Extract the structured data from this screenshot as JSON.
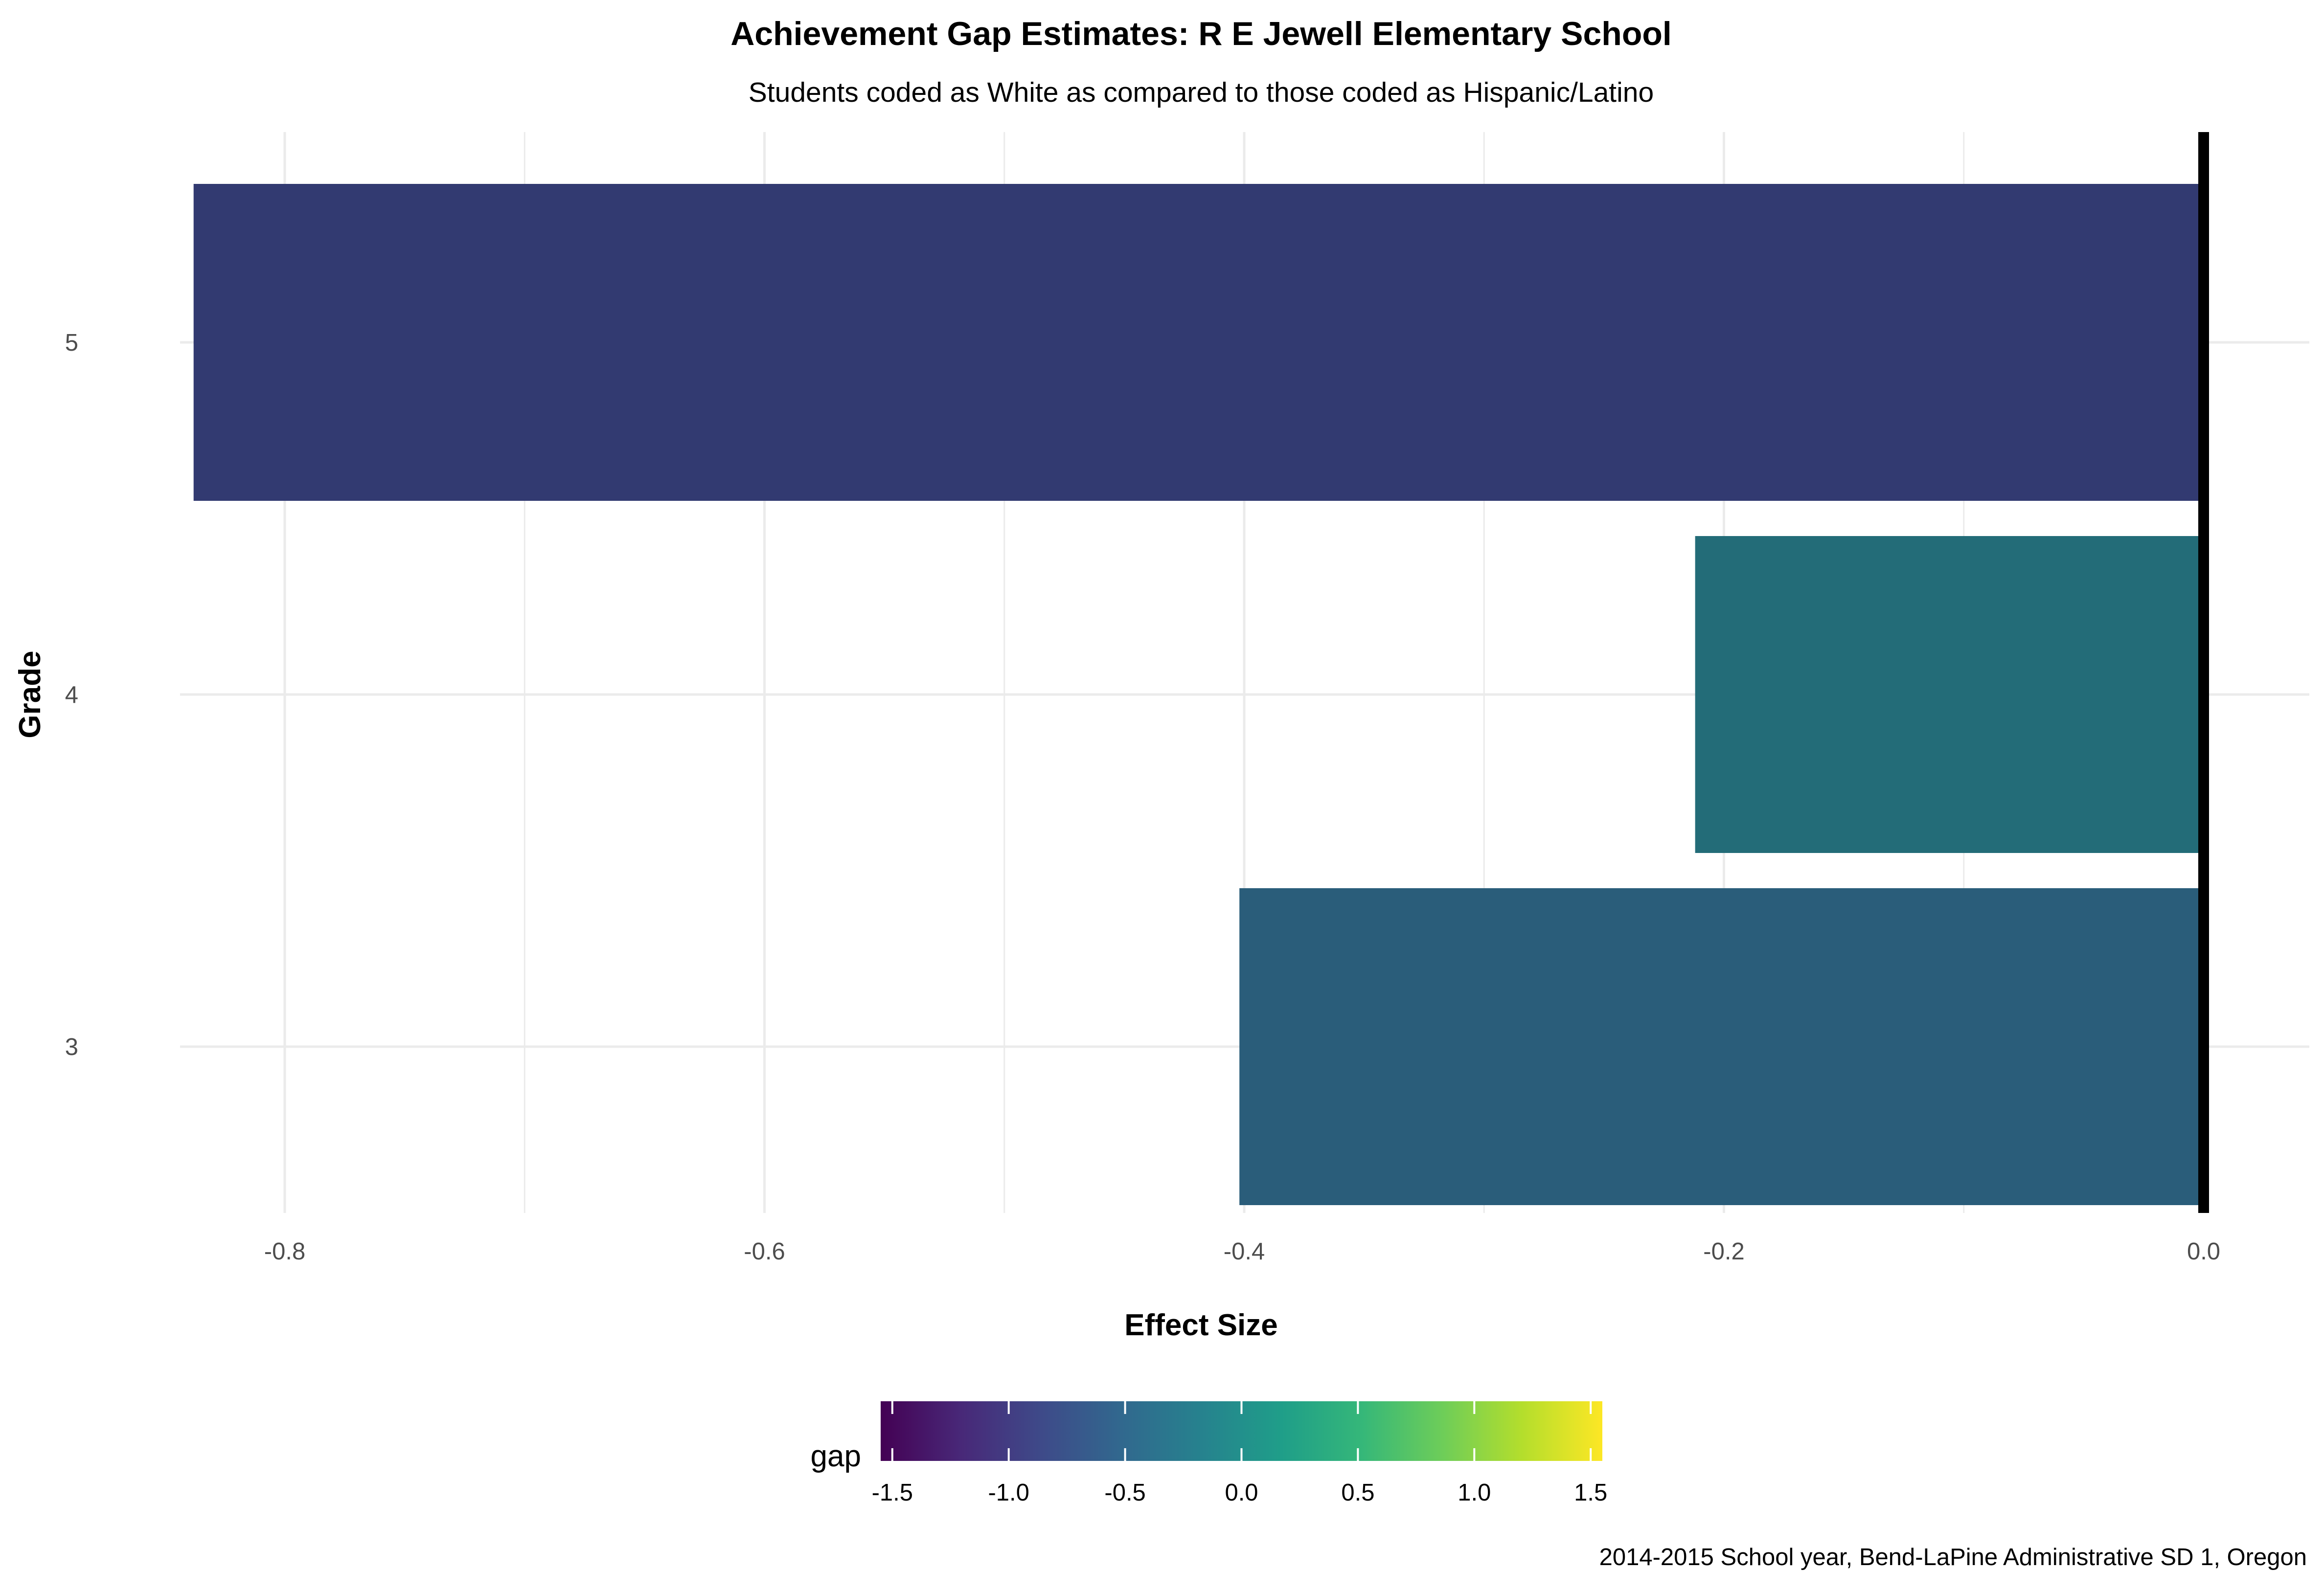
{
  "chart_data": {
    "type": "bar",
    "orientation": "horizontal",
    "title": "Achievement Gap Estimates: R E Jewell Elementary School",
    "subtitle": "Students coded as White as compared to those coded as Hispanic/Latino",
    "xlabel": "Effect Size",
    "ylabel": "Grade",
    "categories": [
      "3",
      "4",
      "5"
    ],
    "values": [
      -0.402,
      -0.212,
      -0.838
    ],
    "bar_colors": [
      "#2A5D7A",
      "#236C78",
      "#323A71"
    ],
    "xlim": [
      -0.87,
      0.0
    ],
    "x_ticks": [
      {
        "value": -0.8,
        "label": "-0.8"
      },
      {
        "value": -0.6,
        "label": "-0.6"
      },
      {
        "value": -0.4,
        "label": "-0.4"
      },
      {
        "value": -0.2,
        "label": "-0.2"
      },
      {
        "value": 0.0,
        "label": "0.0"
      }
    ],
    "reference_line": 0.0,
    "grid": true,
    "legend": {
      "title": "gap",
      "placement": "bottom",
      "range": [
        -1.55,
        1.55
      ],
      "ticks": [
        {
          "value": -1.5,
          "label": "-1.5"
        },
        {
          "value": -1.0,
          "label": "-1.0"
        },
        {
          "value": -0.5,
          "label": "-0.5"
        },
        {
          "value": 0.0,
          "label": "0.0"
        },
        {
          "value": 0.5,
          "label": "0.5"
        },
        {
          "value": 1.0,
          "label": "1.0"
        },
        {
          "value": 1.5,
          "label": "1.5"
        }
      ],
      "colors": [
        "#440154",
        "#482878",
        "#3E4A89",
        "#31688E",
        "#26828E",
        "#1F9E89",
        "#35B779",
        "#6DCD59",
        "#B4DE2C",
        "#FDE725"
      ]
    },
    "caption": "2014-2015 School year, Bend-LaPine Administrative SD 1, Oregon"
  }
}
